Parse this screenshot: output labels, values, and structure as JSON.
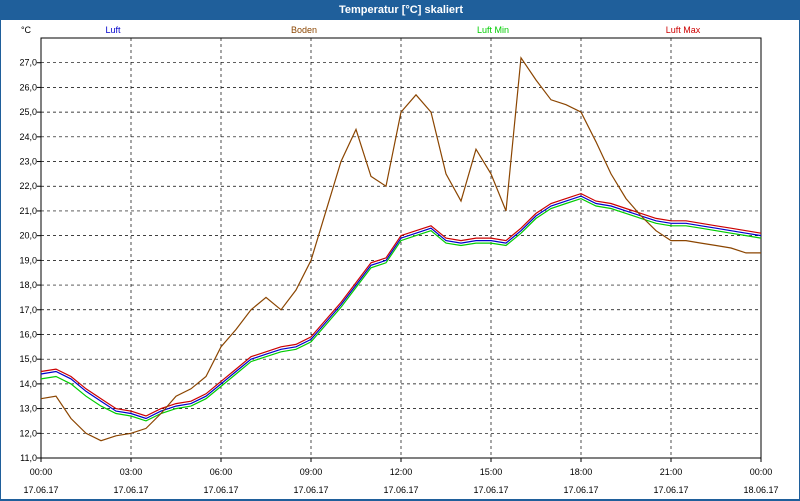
{
  "window": {
    "title": "Temperatur [°C] skaliert"
  },
  "chart_data": {
    "type": "line",
    "title": "Temperatur [°C] skaliert",
    "unit_label": "°C",
    "ylim": [
      11.0,
      28.0
    ],
    "yticks": [
      "11,0",
      "12,0",
      "13,0",
      "14,0",
      "15,0",
      "16,0",
      "17,0",
      "18,0",
      "19,0",
      "20,0",
      "21,0",
      "22,0",
      "23,0",
      "24,0",
      "25,0",
      "26,0",
      "27,0"
    ],
    "xlim": [
      0,
      24
    ],
    "xticks": [
      {
        "t": 0,
        "time": "00:00",
        "date": "17.06.17"
      },
      {
        "t": 3,
        "time": "03:00",
        "date": "17.06.17"
      },
      {
        "t": 6,
        "time": "06:00",
        "date": "17.06.17"
      },
      {
        "t": 9,
        "time": "09:00",
        "date": "17.06.17"
      },
      {
        "t": 12,
        "time": "12:00",
        "date": "17.06.17"
      },
      {
        "t": 15,
        "time": "15:00",
        "date": "17.06.17"
      },
      {
        "t": 18,
        "time": "18:00",
        "date": "17.06.17"
      },
      {
        "t": 21,
        "time": "21:00",
        "date": "17.06.17"
      },
      {
        "t": 24,
        "time": "00:00",
        "date": "18.06.17"
      }
    ],
    "grid": true,
    "series": [
      {
        "name": "Luft",
        "color": "#0000cc",
        "x": [
          0,
          0.5,
          1,
          1.5,
          2,
          2.5,
          3,
          3.5,
          4,
          4.5,
          5,
          5.5,
          6,
          6.5,
          7,
          7.5,
          8,
          8.5,
          9,
          9.5,
          10,
          10.5,
          11,
          11.5,
          12,
          12.5,
          13,
          13.5,
          14,
          14.5,
          15,
          15.5,
          16,
          16.5,
          17,
          17.5,
          18,
          18.5,
          19,
          19.5,
          20,
          20.5,
          21,
          21.5,
          22,
          22.5,
          23,
          23.5,
          24
        ],
        "values": [
          14.4,
          14.5,
          14.2,
          13.7,
          13.3,
          12.9,
          12.8,
          12.6,
          12.9,
          13.1,
          13.2,
          13.5,
          14.0,
          14.5,
          15.0,
          15.2,
          15.4,
          15.5,
          15.8,
          16.5,
          17.2,
          18.0,
          18.8,
          19.0,
          19.9,
          20.1,
          20.3,
          19.8,
          19.7,
          19.8,
          19.8,
          19.7,
          20.2,
          20.8,
          21.2,
          21.4,
          21.6,
          21.3,
          21.2,
          21.0,
          20.8,
          20.6,
          20.5,
          20.5,
          20.4,
          20.3,
          20.2,
          20.1,
          20.0
        ]
      },
      {
        "name": "Boden",
        "color": "#8b4500",
        "x": [
          0,
          0.5,
          1,
          1.5,
          2,
          2.5,
          3,
          3.5,
          4,
          4.5,
          5,
          5.5,
          6,
          6.5,
          7,
          7.5,
          8,
          8.5,
          9,
          9.5,
          10,
          10.5,
          11,
          11.5,
          12,
          12.5,
          13,
          13.5,
          14,
          14.5,
          15,
          15.5,
          16,
          16.5,
          17,
          17.5,
          18,
          18.5,
          19,
          19.5,
          20,
          20.5,
          21,
          21.5,
          22,
          22.5,
          23,
          23.5,
          24
        ],
        "values": [
          13.4,
          13.5,
          12.6,
          12.0,
          11.7,
          11.9,
          12.0,
          12.2,
          12.8,
          13.5,
          13.8,
          14.3,
          15.5,
          16.2,
          17.0,
          17.5,
          17.0,
          17.8,
          19.0,
          21.0,
          23.0,
          24.3,
          22.4,
          22.0,
          25.0,
          25.7,
          25.0,
          22.5,
          21.4,
          23.5,
          22.5,
          21.0,
          27.2,
          26.3,
          25.5,
          25.3,
          25.0,
          23.8,
          22.5,
          21.5,
          20.8,
          20.2,
          19.8,
          19.8,
          19.7,
          19.6,
          19.5,
          19.3,
          19.3
        ]
      },
      {
        "name": "Luft Min",
        "color": "#00cc00",
        "x": [
          0,
          0.5,
          1,
          1.5,
          2,
          2.5,
          3,
          3.5,
          4,
          4.5,
          5,
          5.5,
          6,
          6.5,
          7,
          7.5,
          8,
          8.5,
          9,
          9.5,
          10,
          10.5,
          11,
          11.5,
          12,
          12.5,
          13,
          13.5,
          14,
          14.5,
          15,
          15.5,
          16,
          16.5,
          17,
          17.5,
          18,
          18.5,
          19,
          19.5,
          20,
          20.5,
          21,
          21.5,
          22,
          22.5,
          23,
          23.5,
          24
        ],
        "values": [
          14.2,
          14.3,
          14.0,
          13.5,
          13.1,
          12.8,
          12.7,
          12.5,
          12.8,
          13.0,
          13.1,
          13.4,
          13.9,
          14.4,
          14.9,
          15.1,
          15.3,
          15.4,
          15.7,
          16.4,
          17.1,
          17.9,
          18.7,
          18.9,
          19.8,
          20.0,
          20.2,
          19.7,
          19.6,
          19.7,
          19.7,
          19.6,
          20.1,
          20.7,
          21.1,
          21.3,
          21.5,
          21.2,
          21.1,
          20.9,
          20.7,
          20.5,
          20.4,
          20.4,
          20.3,
          20.2,
          20.1,
          20.0,
          19.9
        ]
      },
      {
        "name": "Luft Max",
        "color": "#cc0000",
        "x": [
          0,
          0.5,
          1,
          1.5,
          2,
          2.5,
          3,
          3.5,
          4,
          4.5,
          5,
          5.5,
          6,
          6.5,
          7,
          7.5,
          8,
          8.5,
          9,
          9.5,
          10,
          10.5,
          11,
          11.5,
          12,
          12.5,
          13,
          13.5,
          14,
          14.5,
          15,
          15.5,
          16,
          16.5,
          17,
          17.5,
          18,
          18.5,
          19,
          19.5,
          20,
          20.5,
          21,
          21.5,
          22,
          22.5,
          23,
          23.5,
          24
        ],
        "values": [
          14.5,
          14.6,
          14.3,
          13.8,
          13.4,
          13.0,
          12.9,
          12.7,
          13.0,
          13.2,
          13.3,
          13.6,
          14.1,
          14.6,
          15.1,
          15.3,
          15.5,
          15.6,
          15.9,
          16.6,
          17.3,
          18.1,
          18.9,
          19.1,
          20.0,
          20.2,
          20.4,
          19.9,
          19.8,
          19.9,
          19.9,
          19.8,
          20.3,
          20.9,
          21.3,
          21.5,
          21.7,
          21.4,
          21.3,
          21.1,
          20.9,
          20.7,
          20.6,
          20.6,
          20.5,
          20.4,
          20.3,
          20.2,
          20.1
        ]
      }
    ]
  }
}
